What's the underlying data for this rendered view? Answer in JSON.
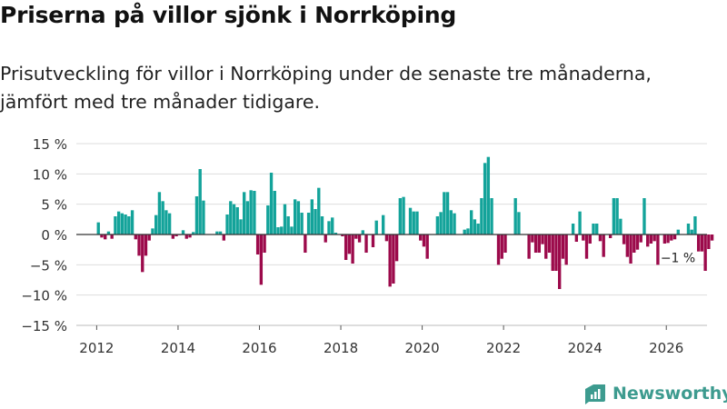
{
  "title": "Priserna på villor sjönk i Norrköping",
  "subtitle": "Prisutveckling för villor i Norrköping under de senaste tre månaderna, jämfört med tre månader tidigare.",
  "brand": {
    "name": "Newsworthy",
    "icon": "newsworthy-logo-icon"
  },
  "colors": {
    "positive": "#13a39a",
    "negative": "#9c0a4b",
    "grid": "#dddddd",
    "zero_line": "#333333"
  },
  "chart_data": {
    "type": "bar",
    "title": "Priserna på villor sjönk i Norrköping",
    "xlabel": "",
    "ylabel": "",
    "x_start": "2012-01",
    "frequency": "monthly",
    "xlim": [
      2011.5,
      2027
    ],
    "ylim": [
      -15,
      15
    ],
    "yticks": [
      15,
      10,
      5,
      0,
      -5,
      -10,
      -15
    ],
    "ytick_labels": [
      "15 %",
      "10 %",
      "5 %",
      "0 %",
      "−5 %",
      "−10 %",
      "−15 %"
    ],
    "xticks": [
      2012,
      2014,
      2016,
      2018,
      2020,
      2022,
      2024,
      2026
    ],
    "xtick_labels": [
      "2012",
      "2014",
      "2016",
      "2018",
      "2020",
      "2022",
      "2024",
      "2026"
    ],
    "grid": true,
    "annotation": {
      "text": "−1 %",
      "at": "2026-02"
    },
    "values": [
      2,
      -0.5,
      -0.8,
      0.5,
      -0.7,
      3,
      3.8,
      3.5,
      3.3,
      3,
      4,
      -0.8,
      -3.5,
      -6.2,
      -3.5,
      -1,
      1,
      3.2,
      7,
      5.5,
      4,
      3.5,
      -0.7,
      -0.3,
      -0.1,
      0.7,
      -0.7,
      -0.5,
      0.4,
      6.3,
      10.8,
      5.6,
      0,
      0,
      0,
      0.5,
      0.5,
      -1,
      3.3,
      5.5,
      5,
      4.5,
      2.5,
      7,
      5.5,
      7.3,
      7.2,
      -3.3,
      -8.3,
      -3,
      4.8,
      10.2,
      7.2,
      1.2,
      1.3,
      5,
      3,
      1.3,
      5.8,
      5.5,
      3.6,
      -3,
      3.6,
      5.8,
      4.2,
      7.7,
      3,
      -1.3,
      2.2,
      2.8,
      0.3,
      0,
      -0.3,
      -4.2,
      -3.2,
      -4.8,
      -0.7,
      -1.3,
      0.7,
      -3,
      -0.1,
      -2.1,
      2.3,
      0,
      3.2,
      -1.1,
      -8.6,
      -8.1,
      -4.4,
      6,
      6.2,
      0,
      4.4,
      3.8,
      3.8,
      -1,
      -2,
      -4,
      0,
      0,
      3,
      3.7,
      7,
      7,
      4,
      3.5,
      0,
      0,
      0.8,
      1,
      4,
      2.5,
      1.8,
      6,
      11.8,
      12.8,
      6,
      0,
      -5,
      -4,
      -3,
      0,
      0,
      6,
      3.7,
      0,
      0,
      -4,
      -1.3,
      -3,
      -3,
      -1.6,
      -4,
      -3,
      -6,
      -6,
      -9,
      -4,
      -5,
      0,
      1.8,
      -1.2,
      3.8,
      -1,
      -4,
      -1.5,
      1.8,
      1.8,
      -1.1,
      -3.7,
      0,
      -0.6,
      6,
      6,
      2.6,
      -1.6,
      -3.7,
      -4.8,
      -3,
      -2.5,
      -1.3,
      6,
      -2,
      -1.5,
      -1.1,
      -5,
      0,
      -1.5,
      -1.4,
      -1,
      -0.8,
      0.8,
      0,
      0,
      1.8,
      0.8,
      3,
      -2.8,
      -2.8,
      -6,
      -2.4,
      -1
    ]
  }
}
